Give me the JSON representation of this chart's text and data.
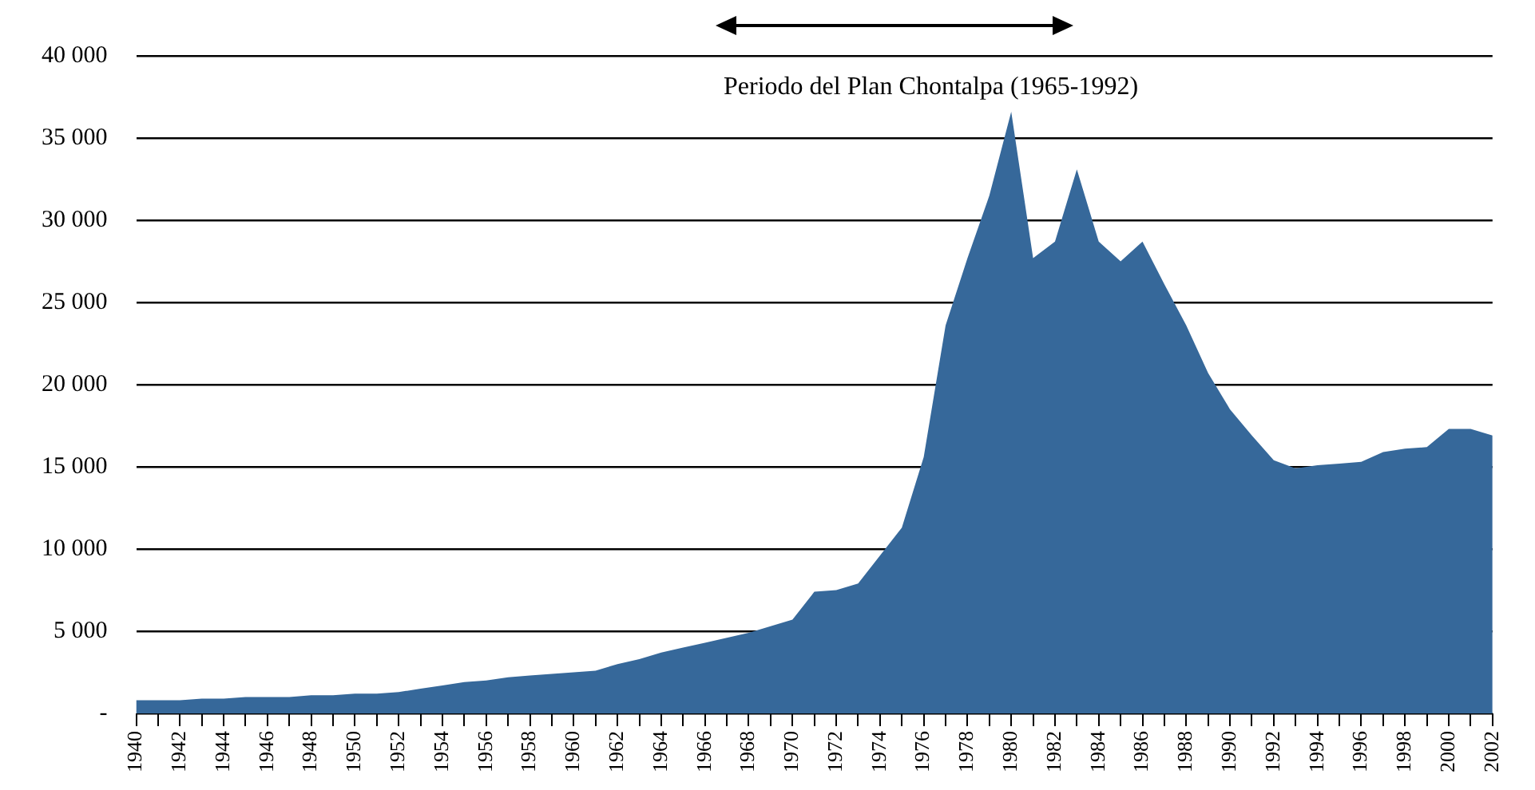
{
  "chart_data": {
    "type": "area",
    "categories": [
      "1940",
      null,
      "1942",
      null,
      "1944",
      null,
      "1946",
      null,
      "1948",
      null,
      "1950",
      null,
      "1952",
      null,
      "1954",
      null,
      "1956",
      null,
      "1958",
      null,
      "1960",
      null,
      "1962",
      null,
      "1964",
      null,
      "1966",
      null,
      "1968",
      null,
      "1970",
      null,
      "1972",
      null,
      "1974",
      null,
      "1976",
      null,
      "1978",
      null,
      "1980",
      null,
      "1982",
      null,
      "1984",
      null,
      "1986",
      null,
      "1988",
      null,
      "1990",
      null,
      "1992",
      null,
      "1994",
      null,
      "1996",
      null,
      "1998",
      null,
      "2000",
      null,
      "2002"
    ],
    "series": [
      {
        "color": "#36689a",
        "values": [
          800,
          800,
          800,
          900,
          900,
          1000,
          1000,
          1000,
          1100,
          1100,
          1200,
          1200,
          1300,
          1500,
          1700,
          1900,
          2000,
          2200,
          2300,
          2400,
          2500,
          2600,
          3000,
          3300,
          3700,
          4000,
          4300,
          4600,
          4900,
          5300,
          5700,
          7400,
          7500,
          7900,
          9600,
          11300,
          15600,
          23600,
          27700,
          31500,
          36600,
          27700,
          28700,
          33100,
          28700,
          27500,
          28700,
          26100,
          23600,
          20700,
          18500,
          16900,
          15400,
          14900,
          15100,
          15200,
          15300,
          15900,
          16100,
          16200,
          17300,
          17300,
          16900
        ]
      }
    ],
    "ylim": [
      0,
      40000
    ],
    "yticks": [
      {
        "value": 0,
        "label": "-"
      },
      {
        "value": 5000,
        "label": "5 000"
      },
      {
        "value": 10000,
        "label": "10 000"
      },
      {
        "value": 15000,
        "label": "15 000"
      },
      {
        "value": 20000,
        "label": "20 000"
      },
      {
        "value": 25000,
        "label": "25 000"
      },
      {
        "value": 30000,
        "label": "30 000"
      },
      {
        "value": 35000,
        "label": "35 000"
      },
      {
        "value": 40000,
        "label": "40 000"
      }
    ],
    "grid": "y",
    "legend": false,
    "marker": "none",
    "annotations": [
      "Periodo del Plan Chontalpa (1965-1992)"
    ]
  }
}
